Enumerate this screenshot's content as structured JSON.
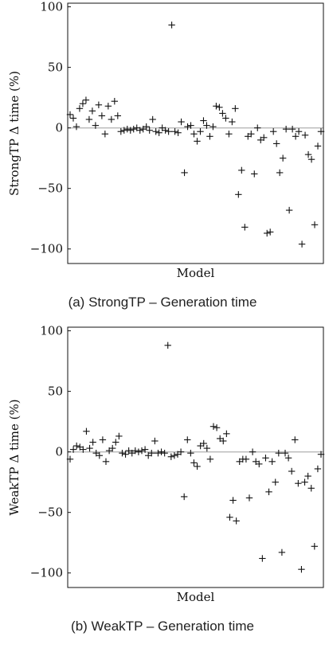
{
  "chart_data": [
    {
      "type": "scatter",
      "caption": "(a) StrongTP – Generation time",
      "xlabel": "Model",
      "ylabel": "StrongTP Δ time (%)",
      "ylim": [
        -112,
        103
      ],
      "yticks": [
        100,
        50,
        0,
        -50,
        -100
      ],
      "ytick_labels": [
        "100",
        "50",
        "0",
        "−50",
        "−100"
      ],
      "zero_line": true,
      "grid": false,
      "marker": "+",
      "y": [
        11,
        8,
        1,
        16,
        20,
        23,
        7,
        14,
        2,
        19,
        10,
        -5,
        18,
        7,
        22,
        10,
        -3,
        -2,
        -1,
        -2,
        -1,
        0,
        -2,
        -1,
        1,
        -2,
        7,
        -3,
        -4,
        0,
        -2,
        -3,
        85,
        -3,
        -4,
        5,
        -37,
        1,
        2,
        -5,
        -11,
        -3,
        6,
        2,
        -7,
        1,
        18,
        17,
        12,
        8,
        -5,
        5,
        16,
        -55,
        -35,
        -82,
        -7,
        -5,
        -38,
        0,
        -10,
        -8,
        -87,
        -86,
        -3,
        -13,
        -37,
        -25,
        -1,
        -68,
        -1,
        -7,
        -3,
        -96,
        -6,
        -22,
        -26,
        -80,
        -15,
        -3
      ]
    },
    {
      "type": "scatter",
      "caption": "(b) WeakTP – Generation time",
      "xlabel": "Model",
      "ylabel": "WeakTP Δ time (%)",
      "ylim": [
        -112,
        103
      ],
      "yticks": [
        100,
        50,
        0,
        -50,
        -100
      ],
      "ytick_labels": [
        "100",
        "50",
        "0",
        "−50",
        "−100"
      ],
      "zero_line": true,
      "grid": false,
      "marker": "+",
      "y": [
        -6,
        2,
        5,
        4,
        2,
        17,
        3,
        8,
        -1,
        -3,
        10,
        -8,
        1,
        3,
        8,
        13,
        -1,
        -2,
        1,
        -1,
        1,
        0,
        1,
        2,
        -3,
        -1,
        9,
        -1,
        0,
        -1,
        88,
        -4,
        -3,
        -2,
        0,
        -37,
        10,
        -1,
        -9,
        -12,
        5,
        7,
        3,
        -6,
        21,
        20,
        11,
        9,
        15,
        -54,
        -40,
        -57,
        -8,
        -6,
        -6,
        -38,
        0,
        -8,
        -10,
        -88,
        -5,
        -33,
        -8,
        -25,
        -1,
        -83,
        -1,
        -5,
        -16,
        10,
        -26,
        -97,
        -25,
        -20,
        -30,
        -78,
        -14,
        -2
      ]
    }
  ]
}
